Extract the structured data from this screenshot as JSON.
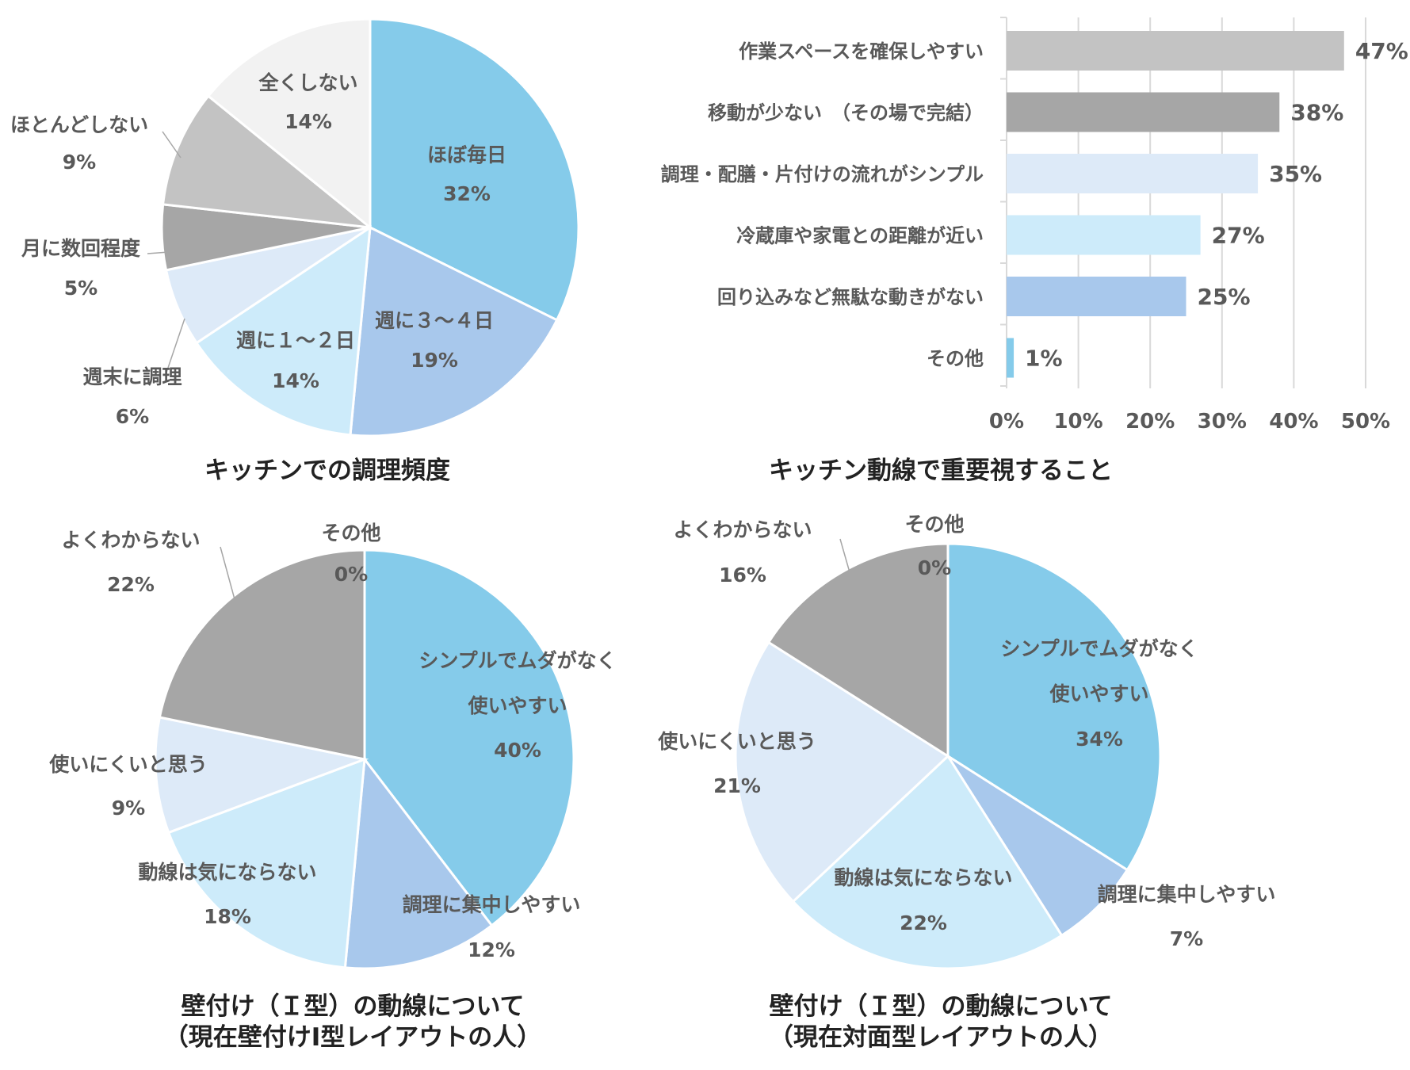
{
  "chart_data": [
    {
      "type": "pie",
      "title": "キッチンでの調理頻度",
      "slices": [
        {
          "label": "ほぼ毎日",
          "value": 32,
          "value_label": "32%",
          "color": "#85CBEA"
        },
        {
          "label": "週に３～４日",
          "value": 19,
          "value_label": "19%",
          "color": "#A8C8EC"
        },
        {
          "label": "週に１～２日",
          "value": 14,
          "value_label": "14%",
          "color": "#CDEBFA"
        },
        {
          "label": "週末に調理",
          "value": 6,
          "value_label": "6%",
          "color": "#DDEAF8"
        },
        {
          "label": "月に数回程度",
          "value": 5,
          "value_label": "5%",
          "color": "#A6A6A6"
        },
        {
          "label": "ほとんどしない",
          "value": 9,
          "value_label": "9%",
          "color": "#C3C3C3"
        },
        {
          "label": "全くしない",
          "value": 14,
          "value_label": "14%",
          "color": "#F2F2F2"
        }
      ]
    },
    {
      "type": "bar",
      "orientation": "horizontal",
      "title": "キッチン動線で重要視すること",
      "categories": [
        "作業スペースを確保しやすい",
        "移動が少ない　（その場で完結）",
        "調理・配膳・片付けの流れがシンプル",
        "冷蔵庫や家電との距離が近い",
        "回り込みなど無駄な動きがない",
        "その他"
      ],
      "values": [
        47,
        38,
        35,
        27,
        25,
        1
      ],
      "value_labels": [
        "47%",
        "38%",
        "35%",
        "27%",
        "25%",
        "1%"
      ],
      "colors": [
        "#C3C3C3",
        "#A6A6A6",
        "#DDEAF8",
        "#CDEBFA",
        "#A8C8EC",
        "#85CBEA"
      ],
      "x_ticks": [
        "0%",
        "10%",
        "20%",
        "30%",
        "40%",
        "50%"
      ],
      "xlim": [
        0,
        50
      ],
      "grid": true
    },
    {
      "type": "pie",
      "title": [
        "壁付け（Ｉ型）の動線について",
        "（現在壁付けI型レイアウトの人）"
      ],
      "slices": [
        {
          "label": [
            "シンプルでムダがなく",
            "使いやすい"
          ],
          "value": 40,
          "value_label": "40%",
          "color": "#85CBEA"
        },
        {
          "label": "調理に集中しやすい",
          "value": 12,
          "value_label": "12%",
          "color": "#A8C8EC"
        },
        {
          "label": "動線は気にならない",
          "value": 18,
          "value_label": "18%",
          "color": "#CDEBFA"
        },
        {
          "label": "使いにくいと思う",
          "value": 9,
          "value_label": "9%",
          "color": "#DDEAF8"
        },
        {
          "label": "よくわからない",
          "value": 22,
          "value_label": "22%",
          "color": "#A6A6A6"
        },
        {
          "label": "その他",
          "value": 0,
          "value_label": "0%",
          "color": "#F2F2F2"
        }
      ]
    },
    {
      "type": "pie",
      "title": [
        "壁付け（Ｉ型）の動線について",
        "（現在対面型レイアウトの人）"
      ],
      "slices": [
        {
          "label": [
            "シンプルでムダがなく",
            "使いやすい"
          ],
          "value": 34,
          "value_label": "34%",
          "color": "#85CBEA"
        },
        {
          "label": "調理に集中しやすい",
          "value": 7,
          "value_label": "7%",
          "color": "#A8C8EC"
        },
        {
          "label": "動線は気にならない",
          "value": 22,
          "value_label": "22%",
          "color": "#CDEBFA"
        },
        {
          "label": "使いにくいと思う",
          "value": 21,
          "value_label": "21%",
          "color": "#DDEAF8"
        },
        {
          "label": "よくわからない",
          "value": 16,
          "value_label": "16%",
          "color": "#A6A6A6"
        },
        {
          "label": "その他",
          "value": 0,
          "value_label": "0%",
          "color": "#F2F2F2"
        }
      ]
    }
  ]
}
